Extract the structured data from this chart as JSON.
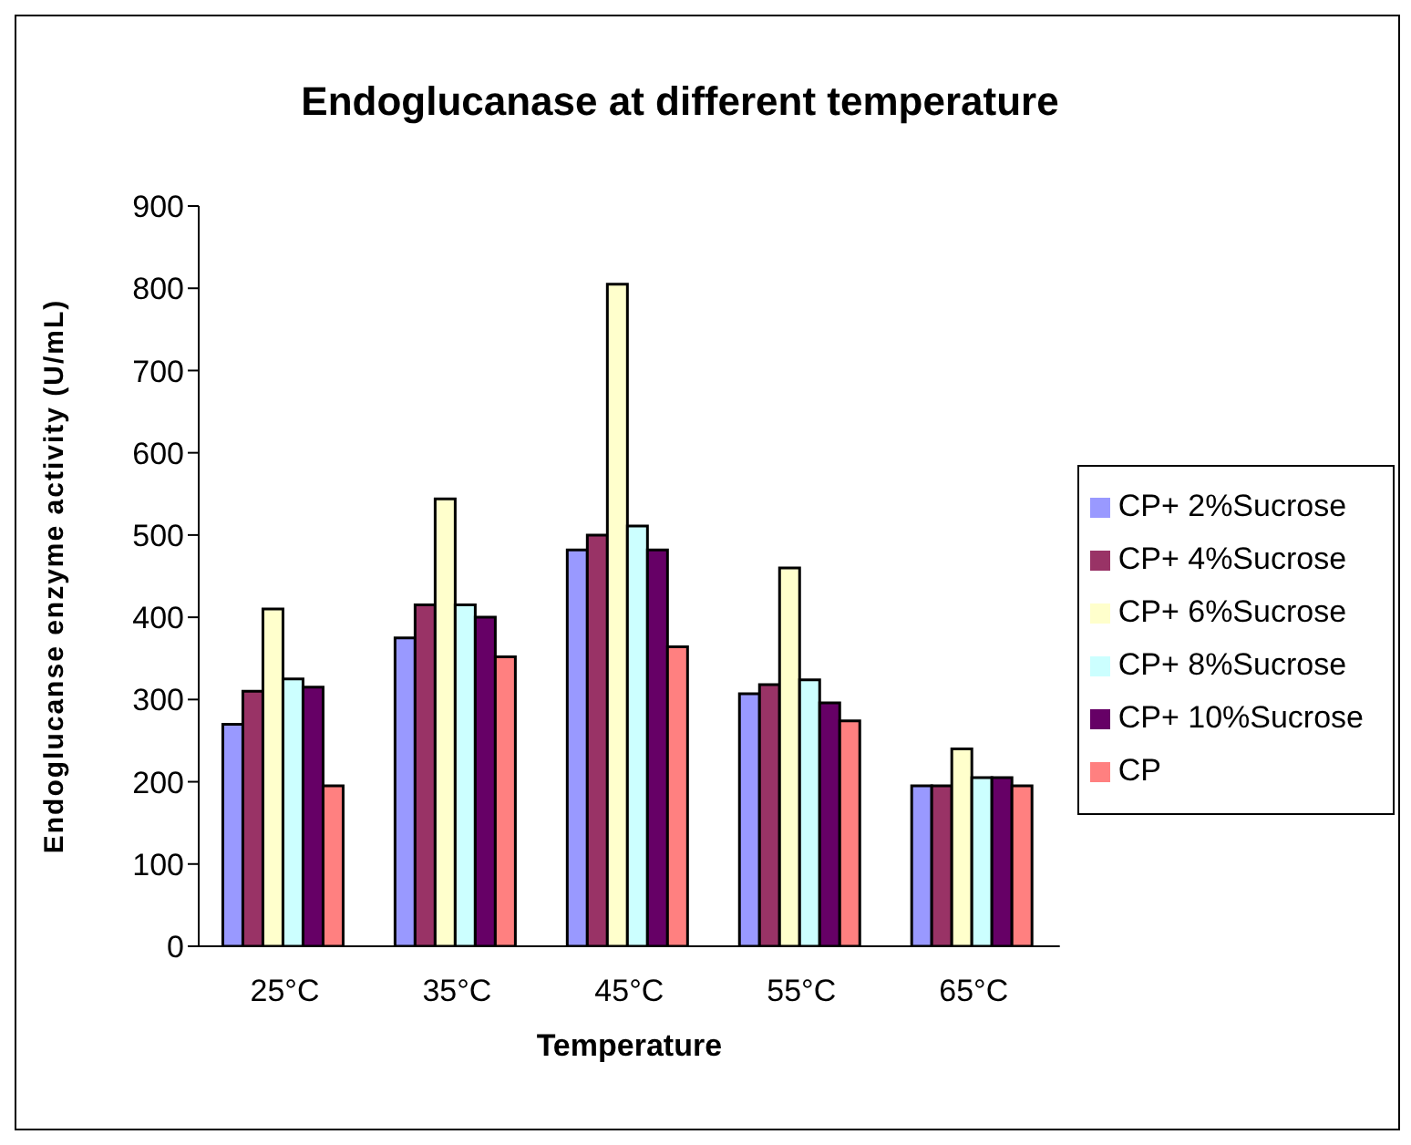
{
  "chart_data": {
    "type": "bar",
    "title": "Endoglucanase at different temperature",
    "xlabel": "Temperature",
    "ylabel": "Endoglucanse enzyme activity (U/mL)",
    "categories": [
      "25°C",
      "35°C",
      "45°C",
      "55°C",
      "65°C"
    ],
    "series": [
      {
        "name": "CP+ 2%Sucrose",
        "color": "#9999ff",
        "values": [
          270,
          375,
          482,
          307,
          195
        ]
      },
      {
        "name": "CP+ 4%Sucrose",
        "color": "#993366",
        "values": [
          310,
          415,
          500,
          318,
          195
        ]
      },
      {
        "name": "CP+ 6%Sucrose",
        "color": "#ffffcc",
        "values": [
          410,
          544,
          805,
          460,
          240
        ]
      },
      {
        "name": "CP+ 8%Sucrose",
        "color": "#ccffff",
        "values": [
          325,
          415,
          511,
          324,
          205
        ]
      },
      {
        "name": "CP+ 10%Sucrose",
        "color": "#660066",
        "values": [
          315,
          400,
          482,
          296,
          205
        ]
      },
      {
        "name": "CP",
        "color": "#ff8080",
        "values": [
          195,
          352,
          364,
          274,
          195
        ]
      }
    ],
    "ylim": [
      0,
      900
    ],
    "yticks": [
      0,
      100,
      200,
      300,
      400,
      500,
      600,
      700,
      800,
      900
    ],
    "grid": false,
    "legend": "right"
  }
}
